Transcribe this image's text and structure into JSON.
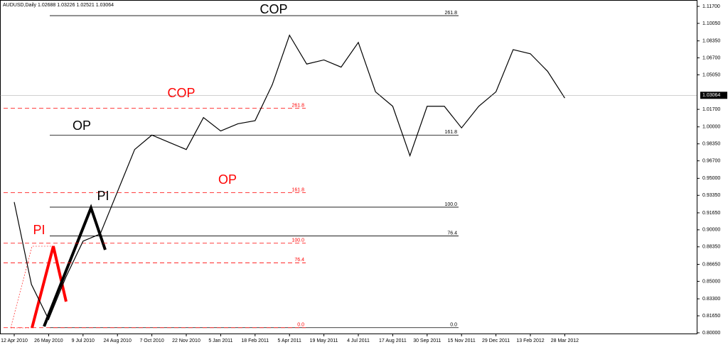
{
  "chart_data": {
    "type": "line",
    "title": "AUDUSD,Daily  1.02688 1.03226 1.02521 1.03064",
    "categories": [
      "12 Apr 2010",
      null,
      "26 May 2010",
      null,
      "9 Jul 2010",
      null,
      "24 Aug 2010",
      null,
      "7 Oct 2010",
      null,
      "22 Nov 2010",
      null,
      "5 Jan 2011",
      null,
      "18 Feb 2011",
      null,
      "5 Apr 2011",
      null,
      "19 May 2011",
      null,
      "4 Jul 2011",
      null,
      "17 Aug 2011",
      null,
      "30 Sep 2011",
      null,
      "15 Nov 2011",
      null,
      "29 Dec 2011",
      null,
      "13 Feb 2012",
      null,
      "28 Mar 2012"
    ],
    "series": [
      {
        "name": "AUDUSD",
        "color": "#000000",
        "values": [
          0.927,
          0.847,
          0.813,
          0.854,
          0.889,
          0.896,
          0.937,
          0.978,
          0.992,
          0.985,
          0.978,
          1.009,
          0.996,
          1.003,
          1.006,
          1.041,
          1.089,
          1.061,
          1.065,
          1.058,
          1.082,
          1.034,
          1.02,
          0.972,
          1.02,
          1.02,
          0.999,
          1.02,
          1.034,
          1.075,
          1.071,
          1.054,
          1.028
        ]
      }
    ],
    "ylim": [
      0.7993,
      1.1232
    ],
    "yticks": [
      {
        "value": 1.117,
        "label": "1.11700"
      },
      {
        "value": 1.1005,
        "label": "1.10050"
      },
      {
        "value": 1.0835,
        "label": "1.08350"
      },
      {
        "value": 1.067,
        "label": "1.06700"
      },
      {
        "value": 1.0505,
        "label": "1.05050"
      },
      {
        "value": 1.017,
        "label": "1.01700"
      },
      {
        "value": 1.0,
        "label": "1.00000"
      },
      {
        "value": 0.9835,
        "label": "0.98350"
      },
      {
        "value": 0.967,
        "label": "0.96700"
      },
      {
        "value": 0.95,
        "label": "0.95000"
      },
      {
        "value": 0.9335,
        "label": "0.93350"
      },
      {
        "value": 0.9165,
        "label": "0.91650"
      },
      {
        "value": 0.9,
        "label": "0.90000"
      },
      {
        "value": 0.8835,
        "label": "0.88350"
      },
      {
        "value": 0.8665,
        "label": "0.86650"
      },
      {
        "value": 0.85,
        "label": "0.85000"
      },
      {
        "value": 0.833,
        "label": "0.83300"
      },
      {
        "value": 0.8165,
        "label": "0.81650"
      },
      {
        "value": 0.8,
        "label": "0.80000"
      }
    ],
    "last_price": {
      "value": 1.03064,
      "label": "1.03064"
    },
    "levels": [
      {
        "color": "#000000",
        "dashed": false,
        "lines": [
          {
            "value": 1.108,
            "label": "261.8"
          },
          {
            "value": 0.992,
            "label": "161.8"
          },
          {
            "value": 0.922,
            "label": "100.0"
          },
          {
            "value": 0.894,
            "label": "76.4"
          },
          {
            "value": 0.805,
            "label": "0.0"
          }
        ]
      },
      {
        "color": "#ff0000",
        "dashed": true,
        "lines": [
          {
            "value": 1.018,
            "label": "261.8"
          },
          {
            "value": 0.936,
            "label": "161.8"
          },
          {
            "value": 0.887,
            "label": "100.0"
          },
          {
            "value": 0.868,
            "label": "76.4"
          },
          {
            "value": 0.805,
            "label": "0.0"
          }
        ]
      }
    ],
    "annotations": [
      {
        "text": "COP",
        "color": "#000000"
      },
      {
        "text": "COP",
        "color": "#ff0000"
      },
      {
        "text": "OP",
        "color": "#000000"
      },
      {
        "text": "OP",
        "color": "#ff0000"
      },
      {
        "text": "PI",
        "color": "#000000"
      },
      {
        "text": "PI",
        "color": "#ff0000"
      }
    ]
  }
}
